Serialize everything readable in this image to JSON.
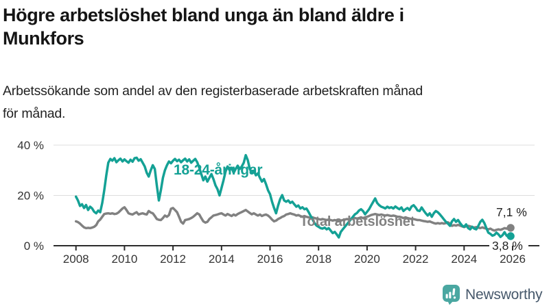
{
  "header": {
    "title_line1": "Högre arbetslöshet bland unga än bland äldre i",
    "title_line2": "Munkfors",
    "subtitle_line1": "Arbetssökande som andel av den registerbaserade arbetskraften månad",
    "subtitle_line2": "för månad."
  },
  "chart_data": {
    "type": "line",
    "title": "Högre arbetslöshet bland unga än bland äldre i Munkfors",
    "subtitle": "Arbetssökande som andel av den registerbaserade arbetskraften månad för månad.",
    "xlabel": "",
    "ylabel": "",
    "grid": "horizontal",
    "legend_position": "inline-labels",
    "x_start": 2008.0,
    "x_step": 0.083333,
    "x_end": 2025.92,
    "xticks": [
      2008,
      2010,
      2012,
      2014,
      2016,
      2018,
      2020,
      2022,
      2024,
      2026
    ],
    "yticks": [
      {
        "value": 0,
        "label": "0 %"
      },
      {
        "value": 20,
        "label": "20 %"
      },
      {
        "value": 40,
        "label": "40 %"
      }
    ],
    "ylim": [
      0,
      42
    ],
    "unit": "%",
    "series": [
      {
        "id": "young",
        "name": "18-24-åringar",
        "color": "#14A195",
        "end_label": "3,8 %",
        "last_value": 3.8,
        "values": [
          19.5,
          18.0,
          15.8,
          16.5,
          15.0,
          16.2,
          14.2,
          15.5,
          14.8,
          13.5,
          12.9,
          14.0,
          13.3,
          17.0,
          22.0,
          28.0,
          33.0,
          34.5,
          33.8,
          34.8,
          33.2,
          34.0,
          34.6,
          33.5,
          34.3,
          33.6,
          33.0,
          34.2,
          33.4,
          34.8,
          35.0,
          33.8,
          34.4,
          33.0,
          31.5,
          29.0,
          27.5,
          30.0,
          32.0,
          30.5,
          24.0,
          18.0,
          22.0,
          27.0,
          30.0,
          32.0,
          33.5,
          32.8,
          33.8,
          34.5,
          33.6,
          34.2,
          33.2,
          34.0,
          34.6,
          33.5,
          34.3,
          33.0,
          33.8,
          34.5,
          33.2,
          31.0,
          28.5,
          26.0,
          27.5,
          25.5,
          27.0,
          28.5,
          26.5,
          24.0,
          22.5,
          20.0,
          23.0,
          26.0,
          29.5,
          31.5,
          30.0,
          31.0,
          29.0,
          30.5,
          31.8,
          30.5,
          31.5,
          33.0,
          36.0,
          34.0,
          30.5,
          29.0,
          29.8,
          28.0,
          28.8,
          27.0,
          25.5,
          26.5,
          24.5,
          22.0,
          20.5,
          17.5,
          15.0,
          12.9,
          16.0,
          18.5,
          20.1,
          18.0,
          17.5,
          18.0,
          17.0,
          17.5,
          16.5,
          15.5,
          16.0,
          14.8,
          15.3,
          14.5,
          14.8,
          13.5,
          12.0,
          10.5,
          9.0,
          8.0,
          7.5,
          7.0,
          6.8,
          7.2,
          6.5,
          7.0,
          6.0,
          5.0,
          5.5,
          4.5,
          3.3,
          5.5,
          6.5,
          7.5,
          8.5,
          9.5,
          10.5,
          11.5,
          12.5,
          13.0,
          14.0,
          14.5,
          13.8,
          12.5,
          13.5,
          14.5,
          16.0,
          17.4,
          18.8,
          17.0,
          16.1,
          15.5,
          15.2,
          14.8,
          15.5,
          15.0,
          15.3,
          14.8,
          15.6,
          15.0,
          14.5,
          15.2,
          13.8,
          14.5,
          15.0,
          14.2,
          15.6,
          16.1,
          15.2,
          14.0,
          13.8,
          15.2,
          14.0,
          12.9,
          12.0,
          12.9,
          11.5,
          12.9,
          13.8,
          13.3,
          12.5,
          11.5,
          10.5,
          9.5,
          8.8,
          7.9,
          9.7,
          10.6,
          9.5,
          10.2,
          9.0,
          8.0,
          7.5,
          8.5,
          7.0,
          6.5,
          7.5,
          6.8,
          6.5,
          7.8,
          9.5,
          10.3,
          9.0,
          7.0,
          5.2,
          4.7,
          4.0,
          4.3,
          5.2,
          4.5,
          3.5,
          4.2,
          5.4,
          4.0,
          3.5,
          3.8
        ]
      },
      {
        "id": "total",
        "name": "Total arbetslöshet",
        "color": "#818181",
        "end_label": "7,1 %",
        "last_value": 7.1,
        "values": [
          9.7,
          9.4,
          8.8,
          8.0,
          7.3,
          7.0,
          7.1,
          7.0,
          7.2,
          7.5,
          8.2,
          9.7,
          10.4,
          11.5,
          12.6,
          12.8,
          12.9,
          12.7,
          12.9,
          12.6,
          12.7,
          13.2,
          14.0,
          14.8,
          15.3,
          14.2,
          12.9,
          12.6,
          12.4,
          12.9,
          13.3,
          12.4,
          12.7,
          12.9,
          12.6,
          12.4,
          13.8,
          13.2,
          12.9,
          11.8,
          10.6,
          10.3,
          10.2,
          11.0,
          12.0,
          11.5,
          12.2,
          14.7,
          15.0,
          14.2,
          13.3,
          11.5,
          9.5,
          8.8,
          10.2,
          10.4,
          10.6,
          11.0,
          11.5,
          12.2,
          12.9,
          12.4,
          11.0,
          9.7,
          9.2,
          9.5,
          10.6,
          11.3,
          12.0,
          12.2,
          12.4,
          12.7,
          12.9,
          12.4,
          12.0,
          12.6,
          12.2,
          11.8,
          12.4,
          12.0,
          12.6,
          13.0,
          13.4,
          13.8,
          14.2,
          13.6,
          13.0,
          12.5,
          12.9,
          12.4,
          12.0,
          12.4,
          11.8,
          12.2,
          12.4,
          12.0,
          11.3,
          10.4,
          9.7,
          10.0,
          10.6,
          11.0,
          11.5,
          11.8,
          12.4,
          12.6,
          12.9,
          12.6,
          12.4,
          12.0,
          12.2,
          11.8,
          11.5,
          11.8,
          11.5,
          11.3,
          11.0,
          11.3,
          11.0,
          10.8,
          10.6,
          10.4,
          10.6,
          10.4,
          10.2,
          10.4,
          10.2,
          10.0,
          10.2,
          10.0,
          9.8,
          10.0,
          10.2,
          10.4,
          10.6,
          10.4,
          10.6,
          10.8,
          11.0,
          10.8,
          11.0,
          11.3,
          11.0,
          11.3,
          11.5,
          11.8,
          12.2,
          12.4,
          12.6,
          12.4,
          12.2,
          12.4,
          12.2,
          12.0,
          12.2,
          12.0,
          11.8,
          12.0,
          11.8,
          11.5,
          11.5,
          11.3,
          11.0,
          11.3,
          11.0,
          10.8,
          10.6,
          10.6,
          10.4,
          10.2,
          10.2,
          10.0,
          9.8,
          9.7,
          9.5,
          9.7,
          9.3,
          9.0,
          8.8,
          9.0,
          8.8,
          9.0,
          8.8,
          9.0,
          9.3,
          8.8,
          7.9,
          8.2,
          8.0,
          8.3,
          8.0,
          7.7,
          7.4,
          7.7,
          7.9,
          7.7,
          7.4,
          7.2,
          7.4,
          7.2,
          7.0,
          7.3,
          7.0,
          6.8,
          6.5,
          6.8,
          6.3,
          6.0,
          6.3,
          6.5,
          6.3,
          6.6,
          7.0,
          6.8,
          7.0,
          7.1
        ]
      }
    ]
  },
  "footer": {
    "brand": "Newsworthy",
    "logo_color": "#4AA7A1",
    "icon": "bar-chart-speech-bubble-icon"
  }
}
